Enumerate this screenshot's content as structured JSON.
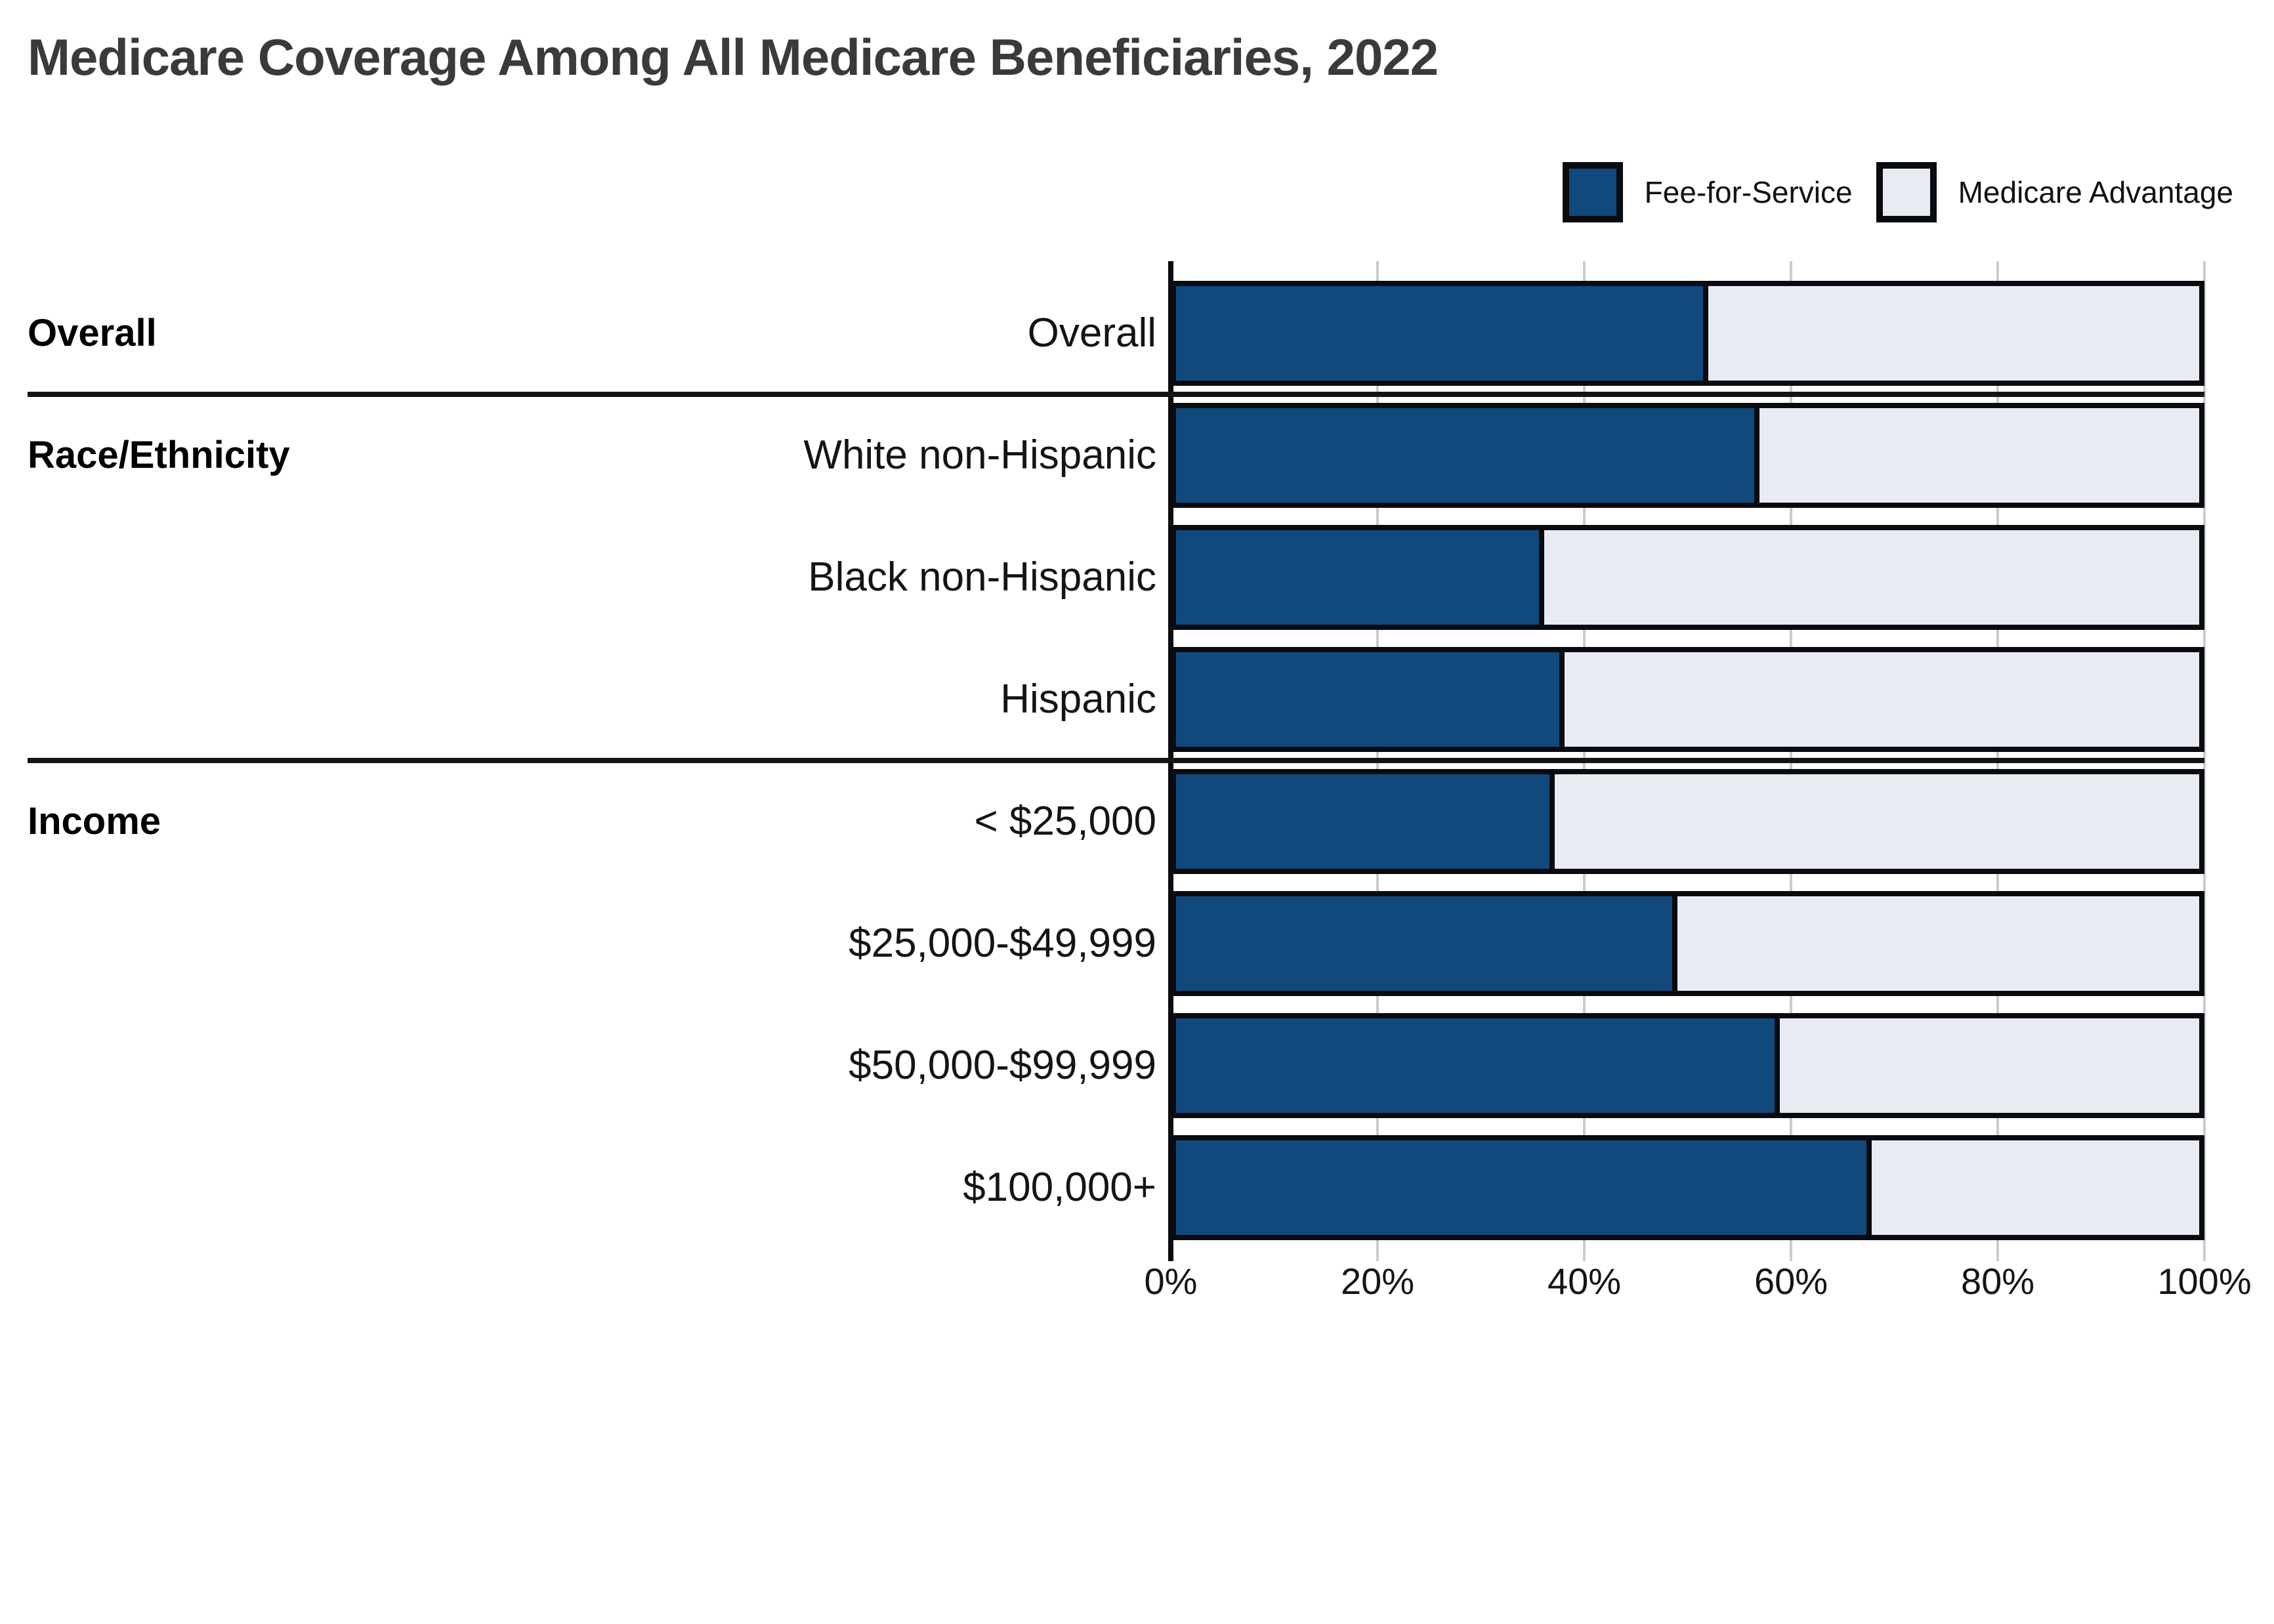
{
  "title": "Medicare Coverage Among All Medicare Beneficiaries, 2022",
  "legend": {
    "position": "top-right",
    "items": [
      {
        "label": "Fee-for-Service",
        "color": "#11497D"
      },
      {
        "label": "Medicare Advantage",
        "color": "#E8EBF2"
      }
    ]
  },
  "axis": {
    "tick_labels": [
      "0%",
      "20%",
      "40%",
      "60%",
      "80%",
      "100%"
    ],
    "tick_values": [
      0,
      20,
      40,
      60,
      80,
      100
    ]
  },
  "colors": {
    "fee_for_service": "#11497D",
    "medicare_advantage": "#E8EBF2",
    "bar_border": "#0A0B10",
    "gridline": "#CBCBCB",
    "separator": "#141414",
    "title_text": "#3A3A3A",
    "label_text": "#141414"
  },
  "chart_data": {
    "type": "bar",
    "orientation": "horizontal",
    "stacked": true,
    "title": "Medicare Coverage Among All Medicare Beneficiaries, 2022",
    "xlabel": "",
    "ylabel": "",
    "xlim": [
      0,
      100
    ],
    "xticks": [
      0,
      20,
      40,
      60,
      80,
      100
    ],
    "grid": "vertical",
    "legend_position": "top-right",
    "categories": [
      "Overall",
      "White non-Hispanic",
      "Black non-Hispanic",
      "Hispanic",
      "< $25,000",
      "$25,000-$49,999",
      "$50,000-$99,999",
      "$100,000+"
    ],
    "groups": [
      {
        "label": "Overall",
        "row_indexes": [
          0
        ]
      },
      {
        "label": "Race/Ethnicity",
        "row_indexes": [
          1,
          2,
          3
        ]
      },
      {
        "label": "Income",
        "row_indexes": [
          4,
          5,
          6,
          7
        ]
      }
    ],
    "series": [
      {
        "name": "Fee-for-Service",
        "color": "#11497D",
        "values": [
          52,
          57,
          36,
          38,
          37,
          49,
          59,
          68
        ]
      },
      {
        "name": "Medicare Advantage",
        "color": "#E8EBF2",
        "values": [
          48,
          43,
          64,
          62,
          63,
          51,
          41,
          32
        ]
      }
    ]
  }
}
